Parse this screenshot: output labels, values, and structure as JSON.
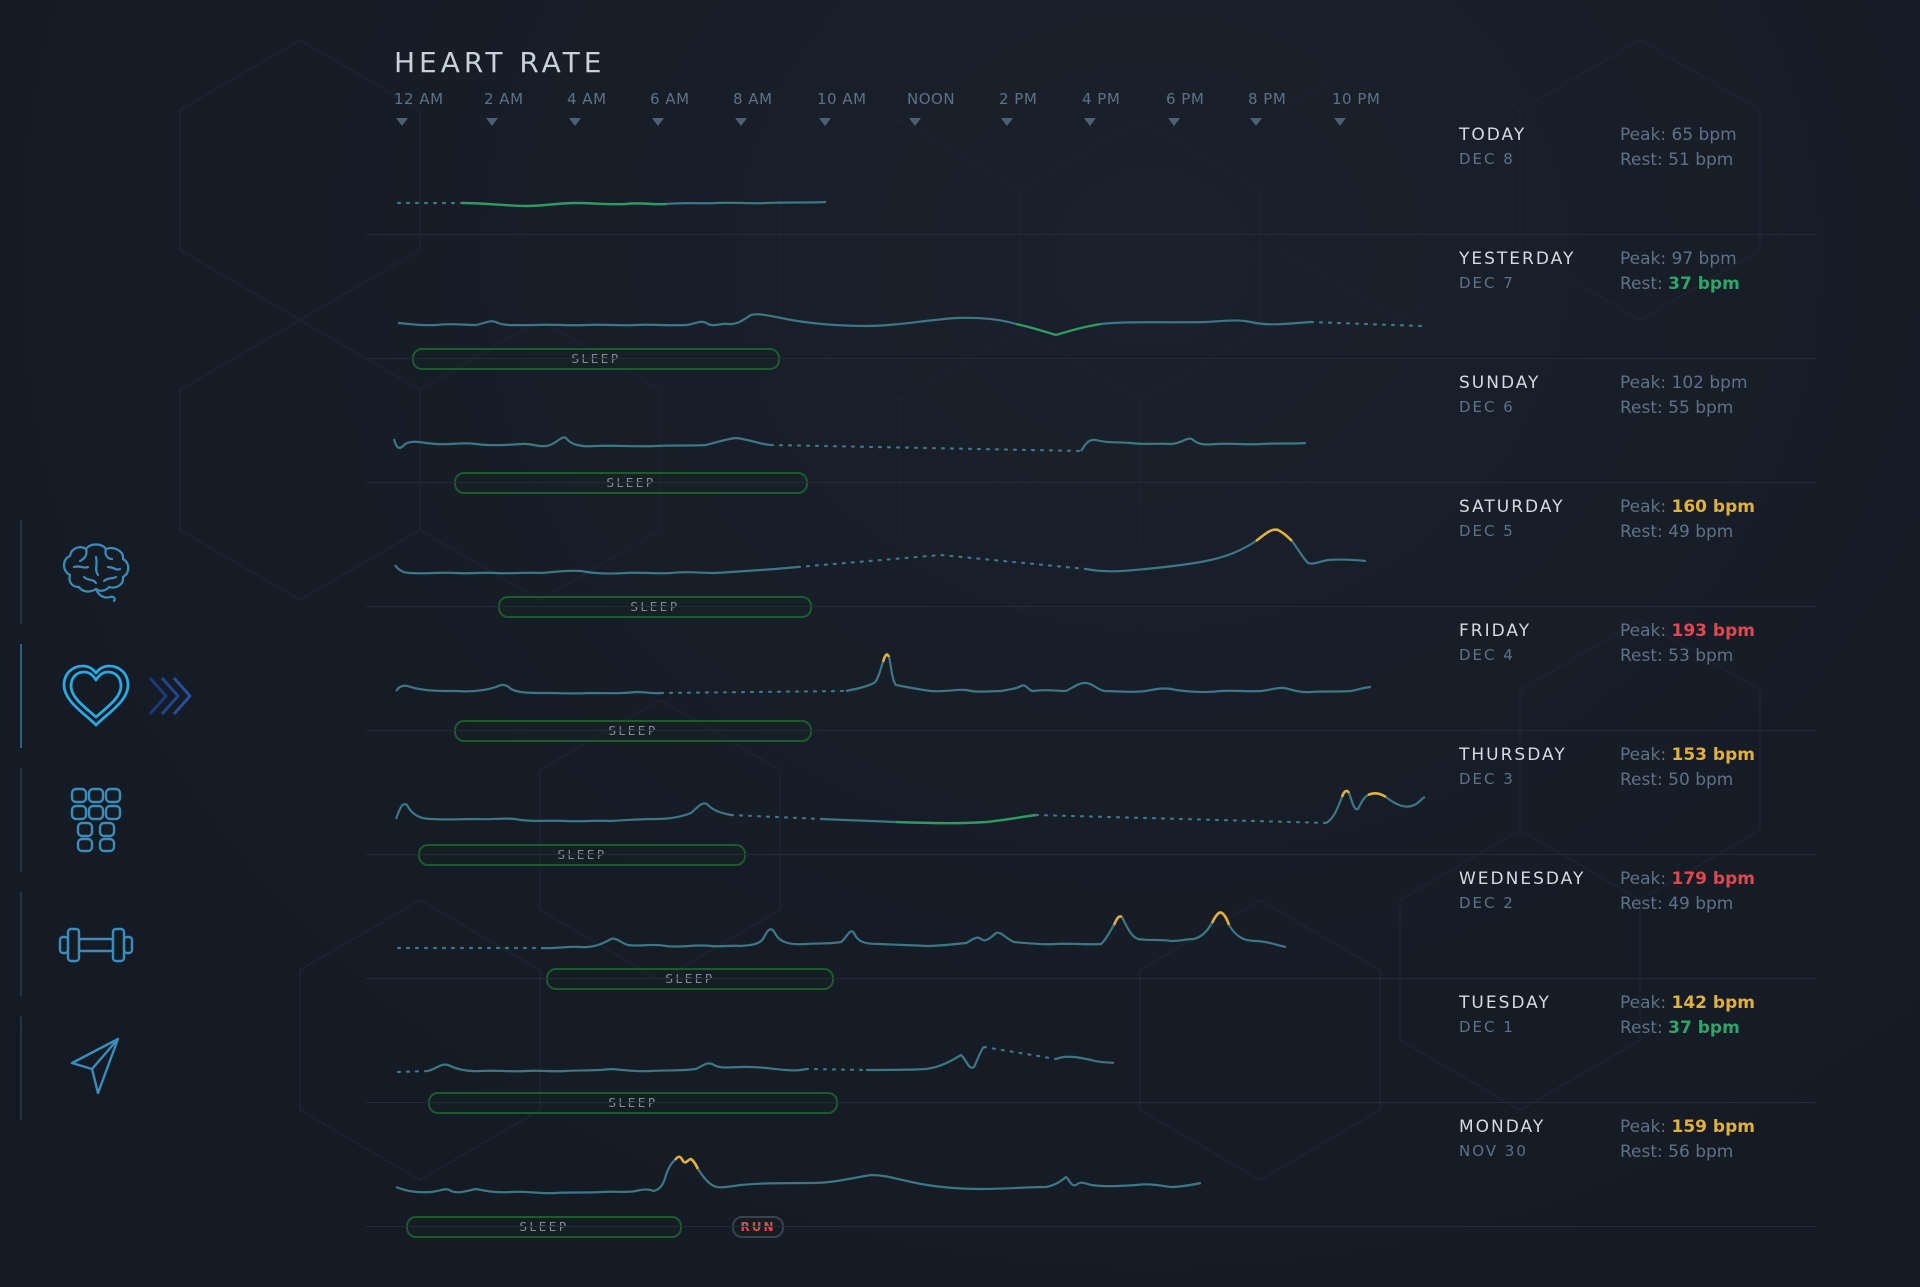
{
  "header": {
    "title": "HEART RATE"
  },
  "time_axis": [
    "12 AM",
    "2 AM",
    "4 AM",
    "6 AM",
    "8 AM",
    "10 AM",
    "NOON",
    "2 PM",
    "4 PM",
    "6 PM",
    "8 PM",
    "10 PM"
  ],
  "sidebar": {
    "items": [
      {
        "icon": "brain-icon",
        "active": false
      },
      {
        "icon": "heart-icon",
        "active": true
      },
      {
        "icon": "grid-icon",
        "active": false
      },
      {
        "icon": "dumbbell-icon",
        "active": false
      },
      {
        "icon": "navigation-arrow-icon",
        "active": false
      }
    ]
  },
  "colors": {
    "accent": "#2aa8e0",
    "trace": "#3d7786",
    "trace_green": "#2f9a63",
    "warn": "#e0b13c",
    "alert": "#e0484f",
    "sleep_border": "#1d5a2f"
  },
  "labels": {
    "peak": "Peak:",
    "rest": "Rest:"
  },
  "days": [
    {
      "day": "TODAY",
      "date": "DEC 8",
      "peak": "65 bpm",
      "peak_level": "normal",
      "rest": "51 bpm",
      "rest_level": "normal",
      "pills": []
    },
    {
      "day": "YESTERDAY",
      "date": "DEC 7",
      "peak": "97 bpm",
      "peak_level": "normal",
      "rest": "37 bpm",
      "rest_level": "green",
      "pills": [
        {
          "label": "SLEEP",
          "type": "sleep",
          "start_hour": 0.3,
          "end_hour": 9.1
        }
      ]
    },
    {
      "day": "SUNDAY",
      "date": "DEC 6",
      "peak": "102 bpm",
      "peak_level": "normal",
      "rest": "55 bpm",
      "rest_level": "normal",
      "pills": [
        {
          "label": "SLEEP",
          "type": "sleep",
          "start_hour": 1.3,
          "end_hour": 9.75
        }
      ]
    },
    {
      "day": "SATURDAY",
      "date": "DEC 5",
      "peak": "160 bpm",
      "peak_level": "yellow",
      "rest": "49 bpm",
      "rest_level": "normal",
      "pills": [
        {
          "label": "SLEEP",
          "type": "sleep",
          "start_hour": 2.35,
          "end_hour": 9.85
        }
      ]
    },
    {
      "day": "FRIDAY",
      "date": "DEC 4",
      "peak": "193 bpm",
      "peak_level": "red",
      "rest": "53 bpm",
      "rest_level": "normal",
      "pills": [
        {
          "label": "SLEEP",
          "type": "sleep",
          "start_hour": 1.3,
          "end_hour": 9.85
        }
      ]
    },
    {
      "day": "THURSDAY",
      "date": "DEC 3",
      "peak": "153 bpm",
      "peak_level": "yellow",
      "rest": "50 bpm",
      "rest_level": "normal",
      "pills": [
        {
          "label": "SLEEP",
          "type": "sleep",
          "start_hour": 0.45,
          "end_hour": 8.3
        }
      ]
    },
    {
      "day": "WEDNESDAY",
      "date": "DEC 2",
      "peak": "179 bpm",
      "peak_level": "red",
      "rest": "49 bpm",
      "rest_level": "normal",
      "pills": [
        {
          "label": "SLEEP",
          "type": "sleep",
          "start_hour": 3.5,
          "end_hour": 10.4
        }
      ]
    },
    {
      "day": "TUESDAY",
      "date": "DEC 1",
      "peak": "142 bpm",
      "peak_level": "yellow",
      "rest": "37 bpm",
      "rest_level": "green",
      "pills": [
        {
          "label": "SLEEP",
          "type": "sleep",
          "start_hour": 0.75,
          "end_hour": 10.5
        }
      ]
    },
    {
      "day": "MONDAY",
      "date": "NOV 30",
      "peak": "159 bpm",
      "peak_level": "yellow",
      "rest": "56 bpm",
      "rest_level": "normal",
      "pills": [
        {
          "label": "SLEEP",
          "type": "sleep",
          "start_hour": 0.25,
          "end_hour": 6.85
        },
        {
          "label": "RUN",
          "type": "run",
          "start_hour": 8.3,
          "end_hour": 9.6
        }
      ]
    }
  ]
}
